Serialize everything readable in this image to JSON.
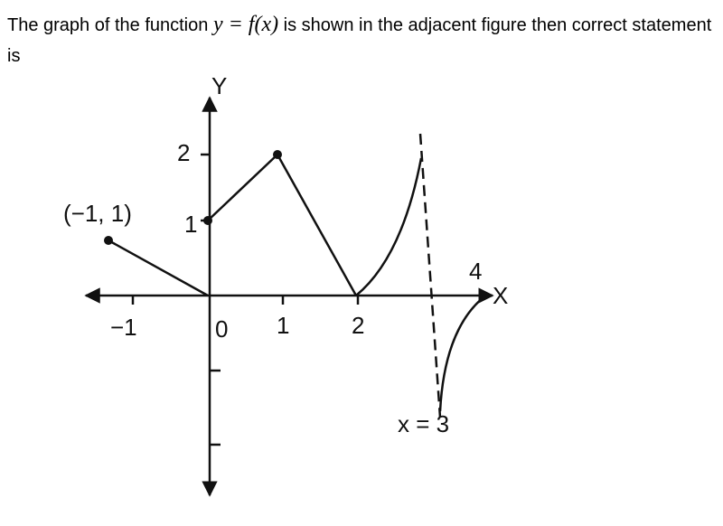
{
  "question": {
    "before": "The graph of the function ",
    "math": "y = f(x)",
    "after": " is shown in the adjacent figure then correct statement is"
  },
  "figure": {
    "y_axis_label": "Y",
    "x_axis_label": "X",
    "point_label": "(−1, 1)",
    "y_tick_labels": [
      "2",
      "1"
    ],
    "x_tick_labels": [
      "−1",
      "0",
      "1",
      "2",
      "4"
    ],
    "asymptote_label": "x = 3"
  }
}
